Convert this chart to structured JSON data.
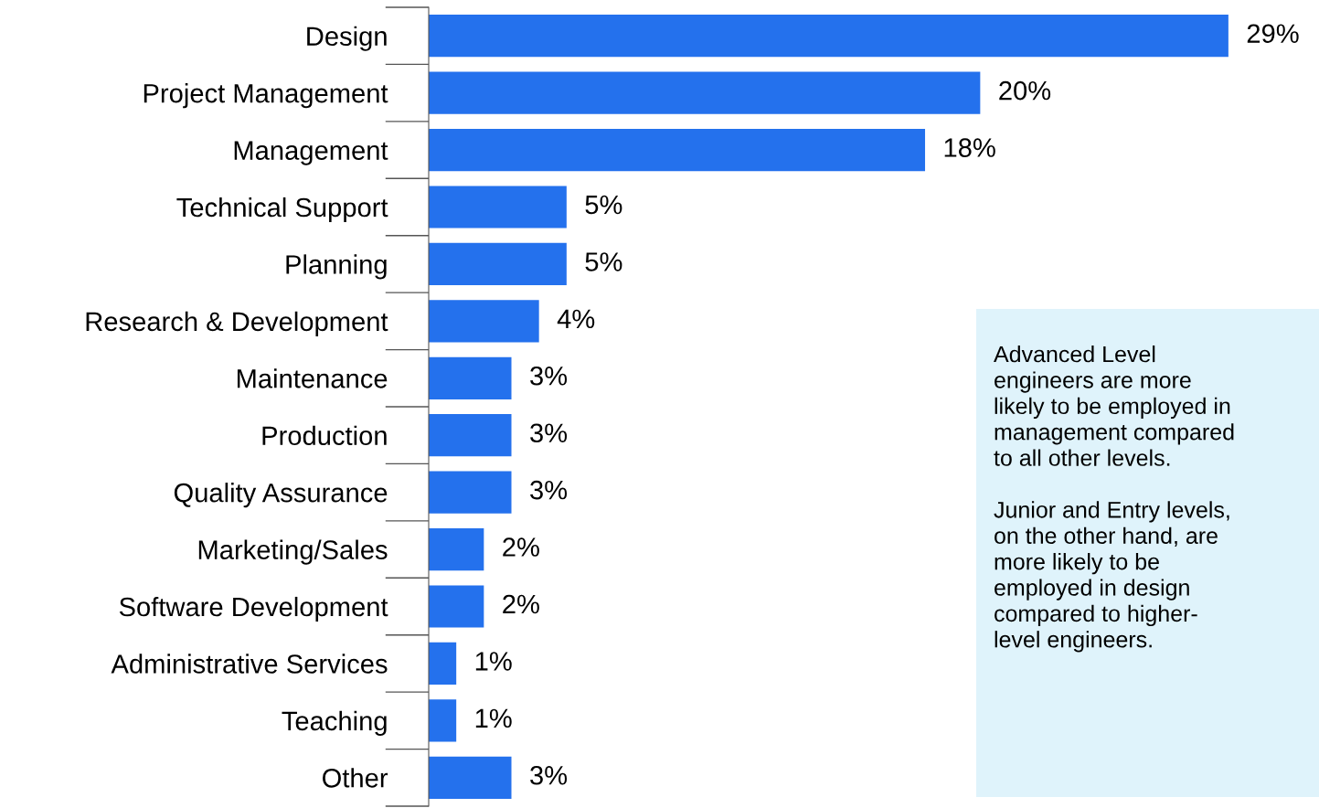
{
  "chart_data": {
    "type": "bar",
    "orientation": "horizontal",
    "data_labels": true,
    "categories": [
      "Design",
      "Project Management",
      "Management",
      "Technical Support",
      "Planning",
      "Research & Development",
      "Maintenance",
      "Production",
      "Quality Assurance",
      "Marketing/Sales",
      "Software Development",
      "Administrative Services",
      "Teaching",
      "Other"
    ],
    "values": [
      29,
      20,
      18,
      5,
      5,
      4,
      3,
      3,
      3,
      2,
      2,
      1,
      1,
      3
    ],
    "value_labels": [
      "29%",
      "20%",
      "18%",
      "5%",
      "5%",
      "4%",
      "3%",
      "3%",
      "3%",
      "2%",
      "2%",
      "1%",
      "1%",
      "3%"
    ],
    "color": "#2471ed",
    "annotations": [
      "Advanced Level\nengineers are more\nlikely to be employed in\nmanagement compared\nto all other levels.\n\nJunior and Entry levels,\non the other hand, are\nmore likely to be\nemployed in design\ncompared to higher-\nlevel engineers."
    ],
    "grid": false,
    "legend": false
  }
}
